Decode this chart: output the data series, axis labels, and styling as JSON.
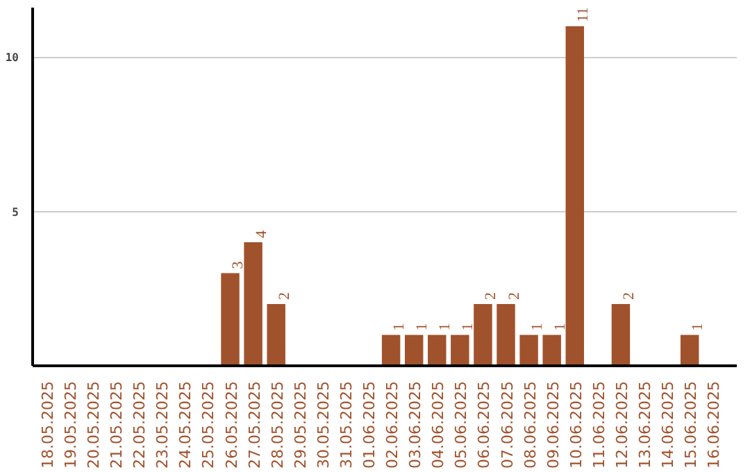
{
  "chart_data": {
    "type": "bar",
    "categories": [
      "18.05.2025",
      "19.05.2025",
      "20.05.2025",
      "21.05.2025",
      "22.05.2025",
      "23.05.2025",
      "24.05.2025",
      "25.05.2025",
      "26.05.2025",
      "27.05.2025",
      "28.05.2025",
      "29.05.2025",
      "30.05.2025",
      "31.05.2025",
      "01.06.2025",
      "02.06.2025",
      "03.06.2025",
      "04.06.2025",
      "05.06.2025",
      "06.06.2025",
      "07.06.2025",
      "08.06.2025",
      "09.06.2025",
      "10.06.2025",
      "11.06.2025",
      "12.06.2025",
      "13.06.2025",
      "14.06.2025",
      "15.06.2025",
      "16.06.2025"
    ],
    "values": [
      0,
      0,
      0,
      0,
      0,
      0,
      0,
      0,
      3,
      4,
      2,
      0,
      0,
      0,
      0,
      1,
      1,
      1,
      1,
      2,
      2,
      1,
      1,
      11,
      0,
      2,
      0,
      0,
      1,
      0
    ],
    "value_labels": [
      null,
      null,
      null,
      null,
      null,
      null,
      null,
      null,
      "3",
      "4",
      "2",
      null,
      null,
      null,
      null,
      "1",
      "1",
      "1",
      "1",
      "2",
      "2",
      "1",
      "1",
      "11",
      null,
      "2",
      null,
      null,
      "1",
      null
    ],
    "color": "#a0522d",
    "ylim": [
      0,
      11.6
    ],
    "yticks": [
      5,
      10
    ],
    "grid": "y"
  }
}
